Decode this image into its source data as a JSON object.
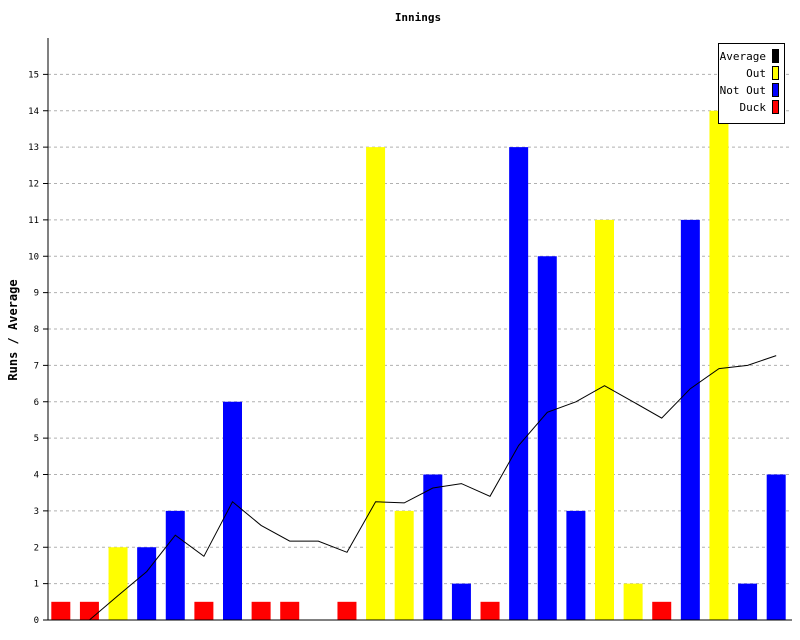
{
  "chart_data": {
    "type": "bar",
    "title": "Innings",
    "xlabel": "",
    "ylabel": "Runs / Average",
    "ylim": [
      0,
      16
    ],
    "yticks": [
      0,
      1,
      2,
      3,
      4,
      5,
      6,
      7,
      8,
      9,
      10,
      11,
      12,
      13,
      14,
      15
    ],
    "grid": true,
    "legend_position": "top-right",
    "legend": [
      {
        "label": "Average",
        "color": "#000000"
      },
      {
        "label": "Out",
        "color": "#ffff00"
      },
      {
        "label": "Not Out",
        "color": "#0000ff"
      },
      {
        "label": "Duck",
        "color": "#ff0000"
      }
    ],
    "colors": {
      "Out": "#ffff00",
      "Not Out": "#0000ff",
      "Duck": "#ff0000",
      "Average": "#000000"
    },
    "innings": [
      {
        "runs": 0.5,
        "status": "Duck"
      },
      {
        "runs": 0.5,
        "status": "Duck"
      },
      {
        "runs": 2,
        "status": "Out"
      },
      {
        "runs": 2,
        "status": "Not Out"
      },
      {
        "runs": 3,
        "status": "Not Out"
      },
      {
        "runs": 0.5,
        "status": "Duck"
      },
      {
        "runs": 6,
        "status": "Not Out"
      },
      {
        "runs": 0.5,
        "status": "Duck"
      },
      {
        "runs": 0.5,
        "status": "Duck"
      },
      {
        "runs": 0,
        "status": "Out"
      },
      {
        "runs": 0.5,
        "status": "Duck"
      },
      {
        "runs": 13,
        "status": "Out"
      },
      {
        "runs": 3,
        "status": "Out"
      },
      {
        "runs": 4,
        "status": "Not Out"
      },
      {
        "runs": 1,
        "status": "Not Out"
      },
      {
        "runs": 0.5,
        "status": "Duck"
      },
      {
        "runs": 13,
        "status": "Not Out"
      },
      {
        "runs": 10,
        "status": "Not Out"
      },
      {
        "runs": 3,
        "status": "Not Out"
      },
      {
        "runs": 11,
        "status": "Out"
      },
      {
        "runs": 1,
        "status": "Out"
      },
      {
        "runs": 0.5,
        "status": "Duck"
      },
      {
        "runs": 11,
        "status": "Not Out"
      },
      {
        "runs": 14,
        "status": "Out"
      },
      {
        "runs": 1,
        "status": "Not Out"
      },
      {
        "runs": 4,
        "status": "Not Out"
      }
    ],
    "average": [
      null,
      0,
      0.67,
      1.33,
      2.33,
      1.75,
      3.25,
      2.6,
      2.17,
      2.17,
      1.86,
      3.25,
      3.22,
      3.63,
      3.75,
      3.4,
      4.8,
      5.71,
      6.0,
      6.44,
      6.0,
      5.55,
      6.36,
      6.91,
      7.0,
      7.27
    ]
  }
}
